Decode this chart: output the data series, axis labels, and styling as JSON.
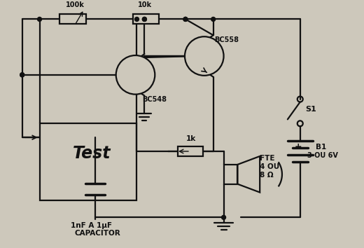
{
  "bg_color": "#cdc8bb",
  "line_color": "#111111",
  "text_color": "#111111",
  "labels": {
    "r1": "100k",
    "r2": "10k",
    "t1": "BC548",
    "t2": "BC558",
    "s1": "S1",
    "b1_line1": "B1",
    "b1_line2": "3 OU 6V",
    "speaker_line1": "FTE",
    "speaker_line2": "4 OU",
    "speaker_line3": "8 Ω",
    "cap_label": "1nF A 1μF",
    "cap_label2": "CAPACITOR",
    "test_label": "Test",
    "pot_label": "1k"
  }
}
